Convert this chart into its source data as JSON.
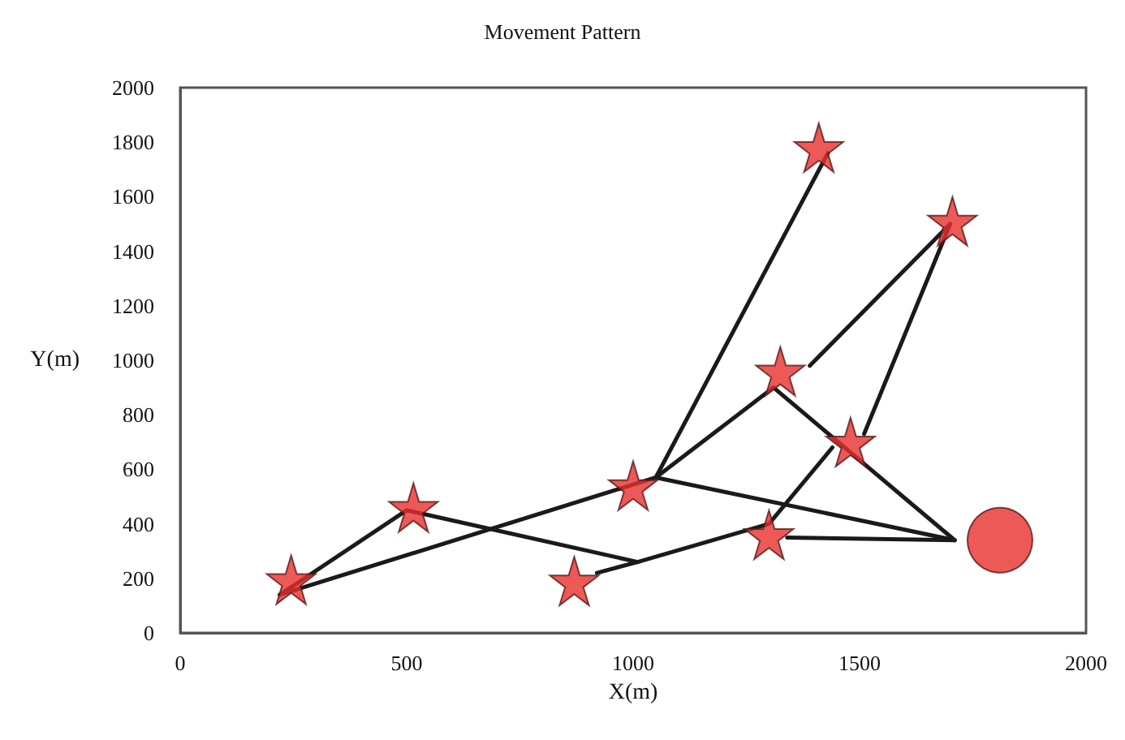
{
  "chart_data": {
    "type": "line",
    "title": "Movement Pattern",
    "xlabel": "X(m)",
    "ylabel": "Y(m)",
    "xlim": [
      0,
      2000
    ],
    "ylim": [
      0,
      2000
    ],
    "xticks": [
      0,
      500,
      1000,
      1500,
      2000
    ],
    "yticks": [
      0,
      200,
      400,
      600,
      800,
      1000,
      1200,
      1400,
      1600,
      1800,
      2000
    ],
    "grid": false,
    "line_style": "solid",
    "series": [
      {
        "color": "#1a1a1a",
        "marker": "none",
        "x": [
          220,
          500,
          1010
        ],
        "values": [
          140,
          450,
          260
        ]
      },
      {
        "color": "#1a1a1a",
        "marker": "none",
        "x": [
          920,
          1010,
          1300,
          1440
        ],
        "values": [
          220,
          260,
          400,
          680
        ]
      },
      {
        "color": "#1a1a1a",
        "marker": "none",
        "x": [
          220,
          1050,
          1430
        ],
        "values": [
          140,
          570,
          1760
        ]
      },
      {
        "color": "#1a1a1a",
        "marker": "none",
        "x": [
          1050,
          1310,
          1710
        ],
        "values": [
          570,
          900,
          340
        ]
      },
      {
        "color": "#1a1a1a",
        "marker": "none",
        "x": [
          1390,
          1700,
          1510
        ],
        "values": [
          980,
          1500,
          730
        ]
      },
      {
        "color": "#1a1a1a",
        "marker": "none",
        "x": [
          1050,
          1710
        ],
        "values": [
          570,
          340
        ]
      },
      {
        "color": "#1a1a1a",
        "marker": "none",
        "x": [
          1340,
          1710
        ],
        "values": [
          350,
          340
        ]
      },
      {
        "type": "scatter",
        "color": "#e8302c",
        "marker": "star",
        "x": [
          245,
          515,
          870,
          1000,
          1300,
          1325,
          1480,
          1410,
          1705
        ],
        "values": [
          195,
          460,
          190,
          540,
          360,
          960,
          700,
          1780,
          1510
        ]
      },
      {
        "type": "scatter",
        "color": "#e8302c",
        "marker": "circle",
        "x": [
          1810
        ],
        "values": [
          340
        ]
      }
    ]
  }
}
